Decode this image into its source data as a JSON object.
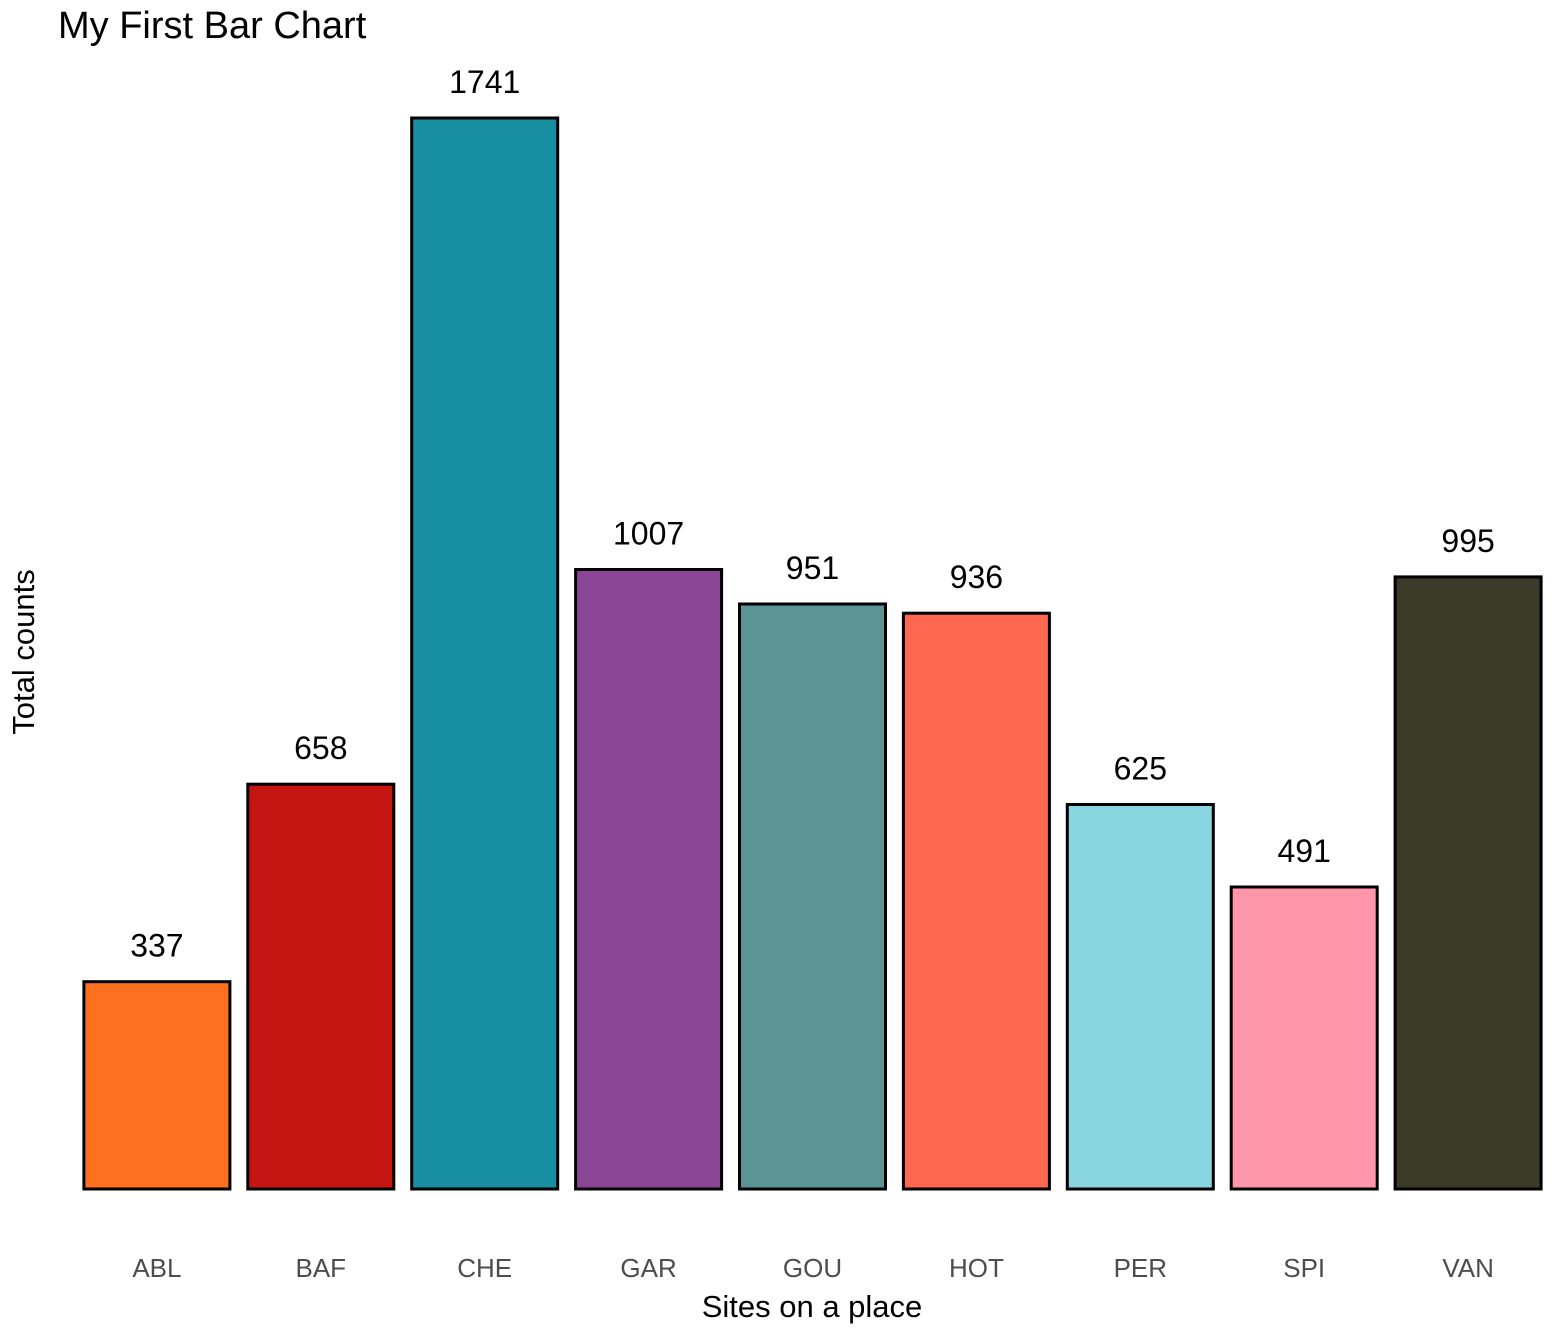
{
  "chart_data": {
    "type": "bar",
    "title": "My First Bar Chart",
    "xlabel": "Sites on a place",
    "ylabel": "Total counts",
    "categories": [
      "ABL",
      "BAF",
      "CHE",
      "GAR",
      "GOU",
      "HOT",
      "PER",
      "SPI",
      "VAN"
    ],
    "values": [
      337,
      658,
      1741,
      1007,
      951,
      936,
      625,
      491,
      995
    ],
    "colors": [
      "#FF7020",
      "#C41512",
      "#178FA1",
      "#8A4694",
      "#5C9496",
      "#FF6750",
      "#8AD6E0",
      "#FF96AA",
      "#3C3A28"
    ],
    "bar_outline": "#000000",
    "ylim": [
      0,
      1741
    ],
    "grid": false,
    "legend": "none",
    "y_ticks_shown": false
  }
}
